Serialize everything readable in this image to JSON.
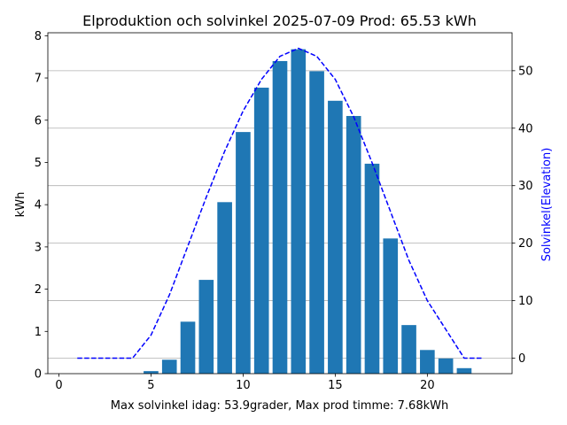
{
  "chart_data": {
    "type": "bar",
    "title": "Elproduktion och solvinkel 2025-07-09 Prod: 65.53 kWh",
    "xlabel": "Max solvinkel idag: 53.9grader, Max prod timme: 7.68kWh",
    "ylabel": "kWh",
    "ylabel_right": "Solvinkel(Elevation)",
    "xlim": [
      -0.6,
      24.6
    ],
    "ylim": [
      0,
      8.07
    ],
    "ylim_right": [
      -2.7,
      56.6
    ],
    "xticks": [
      0,
      5,
      10,
      15,
      20
    ],
    "yticks": [
      0,
      1,
      2,
      3,
      4,
      5,
      6,
      7,
      8
    ],
    "yticks_right": [
      0,
      10,
      20,
      30,
      40,
      50
    ],
    "grid": "horizontal at right-axis ticks",
    "series": [
      {
        "axis": "left",
        "style": "bar",
        "color": "#1f77b4",
        "x": [
          5,
          6,
          7,
          8,
          9,
          10,
          11,
          12,
          13,
          14,
          15,
          16,
          17,
          18,
          19,
          20,
          21,
          22
        ],
        "values": [
          0.06,
          0.33,
          1.23,
          2.22,
          4.06,
          5.72,
          6.77,
          7.4,
          7.68,
          7.16,
          6.46,
          6.1,
          4.97,
          3.2,
          1.15,
          0.56,
          0.36,
          0.13
        ]
      },
      {
        "axis": "right",
        "style": "dashed-line",
        "color": "#0000ff",
        "x": [
          1,
          2,
          3,
          4,
          5,
          6,
          7,
          8,
          9,
          10,
          11,
          12,
          13,
          14,
          15,
          16,
          17,
          18,
          19,
          20,
          21,
          22,
          23
        ],
        "values": [
          0,
          0,
          0,
          0,
          4,
          11,
          19.5,
          28,
          36,
          43,
          48.5,
          52.5,
          53.9,
          52.5,
          48.5,
          42,
          34,
          25.5,
          17,
          10,
          5,
          0,
          0
        ]
      }
    ]
  }
}
